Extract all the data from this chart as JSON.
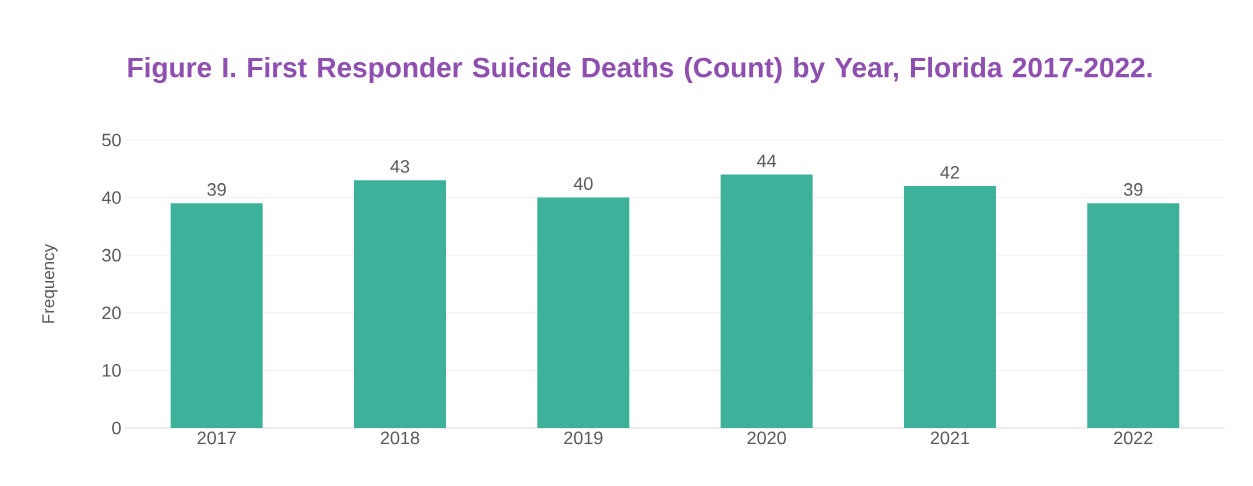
{
  "chart_data": {
    "type": "bar",
    "title": "Figure I. First Responder Suicide Deaths (Count) by Year, Florida 2017-2022.",
    "ylabel": "Frequency",
    "categories": [
      "2017",
      "2018",
      "2019",
      "2020",
      "2021",
      "2022"
    ],
    "values": [
      39,
      43,
      40,
      44,
      42,
      39
    ],
    "color": "#3eb19b",
    "ylim": [
      0,
      50
    ],
    "yticks": [
      0,
      10,
      20,
      30,
      40,
      50
    ],
    "grid": "y",
    "data_labels": true
  }
}
